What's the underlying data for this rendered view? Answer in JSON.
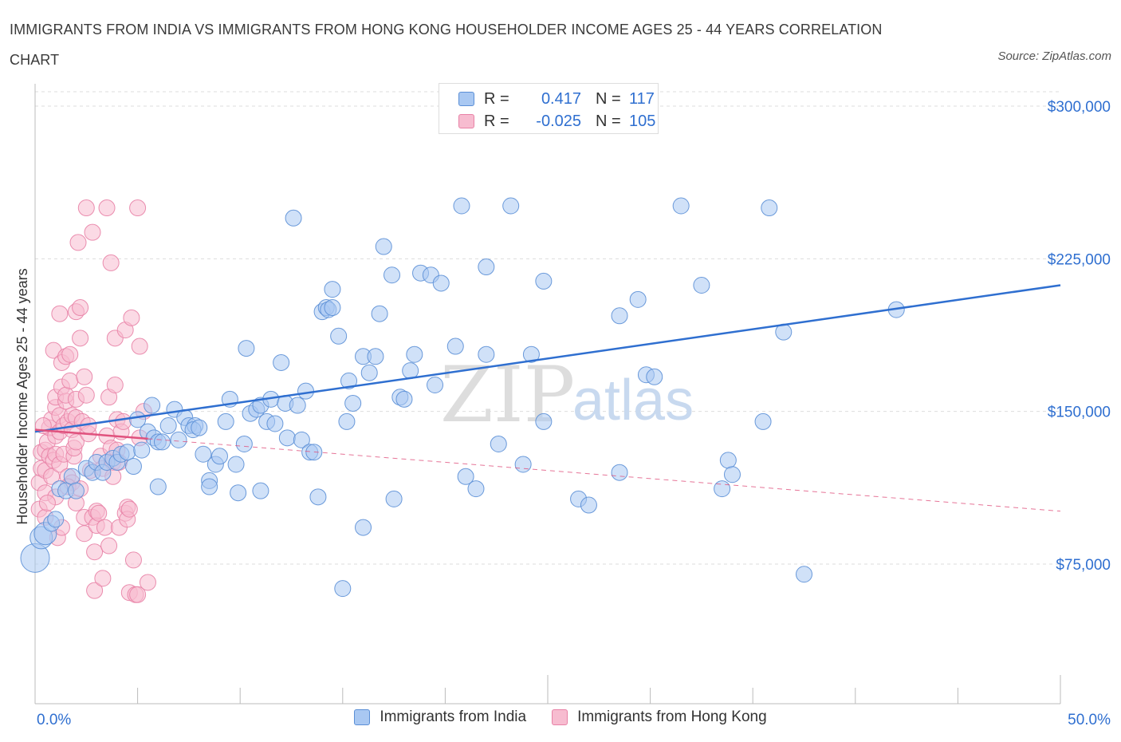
{
  "title": "IMMIGRANTS FROM INDIA VS IMMIGRANTS FROM HONG KONG HOUSEHOLDER INCOME AGES 25 - 44 YEARS CORRELATION CHART",
  "source": "Source: ZipAtlas.com",
  "watermark": {
    "zip": "ZIP",
    "atlas": "atlas"
  },
  "legend": {
    "india": {
      "r_label": "R =",
      "r_value": "0.417",
      "n_label": "N =",
      "n_value": "117"
    },
    "hongkong": {
      "r_label": "R =",
      "r_value": "-0.025",
      "n_label": "N =",
      "n_value": "105"
    }
  },
  "bottom_legend": {
    "india": "Immigrants from India",
    "hongkong": "Immigrants from Hong Kong"
  },
  "colors": {
    "india_fill": "#a9c8f2",
    "india_stroke": "#5b8fd6",
    "india_line": "#2f6fd0",
    "hk_fill": "#f7bcd0",
    "hk_stroke": "#e882a6",
    "hk_line": "#e0527e",
    "tick_text": "#2f6fd0",
    "grid": "#dddddd"
  },
  "chart_data": {
    "type": "scatter",
    "title": "IMMIGRANTS FROM INDIA VS IMMIGRANTS FROM HONG KONG HOUSEHOLDER INCOME AGES 25 - 44 YEARS CORRELATION CHART",
    "xlabel": "",
    "ylabel": "Householder Income Ages 25 - 44 years",
    "xlim": [
      0,
      50
    ],
    "ylim": [
      0,
      300000
    ],
    "x_tick_labels": [
      "0.0%",
      "50.0%"
    ],
    "y_ticks": [
      75000,
      150000,
      225000,
      300000
    ],
    "y_tick_labels": [
      "$75,000",
      "$150,000",
      "$225,000",
      "$300,000"
    ],
    "grid": true,
    "legend_position": "top-center",
    "series": [
      {
        "name": "Immigrants from India",
        "trend": {
          "x": [
            0,
            50
          ],
          "y": [
            140000,
            212000
          ]
        },
        "points": [
          [
            0.0,
            78000
          ],
          [
            0.3,
            88000
          ],
          [
            0.5,
            90000
          ],
          [
            0.8,
            95000
          ],
          [
            1.0,
            97000
          ],
          [
            1.2,
            112000
          ],
          [
            1.5,
            111000
          ],
          [
            1.8,
            118000
          ],
          [
            2.0,
            111000
          ],
          [
            2.5,
            122000
          ],
          [
            2.8,
            120000
          ],
          [
            3.0,
            125000
          ],
          [
            3.3,
            120000
          ],
          [
            3.5,
            125000
          ],
          [
            3.8,
            127000
          ],
          [
            4.0,
            125000
          ],
          [
            4.2,
            129000
          ],
          [
            4.5,
            130000
          ],
          [
            4.8,
            123000
          ],
          [
            5.0,
            146000
          ],
          [
            5.2,
            131000
          ],
          [
            5.5,
            140000
          ],
          [
            5.7,
            153000
          ],
          [
            5.8,
            137000
          ],
          [
            6.0,
            135000
          ],
          [
            6.0,
            113000
          ],
          [
            6.2,
            135000
          ],
          [
            6.5,
            143000
          ],
          [
            6.8,
            151000
          ],
          [
            7.0,
            136000
          ],
          [
            7.3,
            147000
          ],
          [
            7.5,
            143000
          ],
          [
            7.8,
            143000
          ],
          [
            7.7,
            141000
          ],
          [
            8.0,
            142000
          ],
          [
            8.2,
            129000
          ],
          [
            8.5,
            116000
          ],
          [
            8.5,
            113000
          ],
          [
            8.8,
            124000
          ],
          [
            9.0,
            128000
          ],
          [
            9.3,
            145000
          ],
          [
            9.5,
            156000
          ],
          [
            9.8,
            124000
          ],
          [
            9.9,
            110000
          ],
          [
            10.2,
            134000
          ],
          [
            10.3,
            181000
          ],
          [
            10.5,
            149000
          ],
          [
            10.8,
            151000
          ],
          [
            11.0,
            153000
          ],
          [
            11.0,
            111000
          ],
          [
            11.3,
            145000
          ],
          [
            11.5,
            156000
          ],
          [
            11.7,
            144000
          ],
          [
            12.0,
            174000
          ],
          [
            12.2,
            154000
          ],
          [
            12.3,
            137000
          ],
          [
            12.6,
            245000
          ],
          [
            12.8,
            153000
          ],
          [
            13.0,
            136000
          ],
          [
            13.2,
            160000
          ],
          [
            13.4,
            130000
          ],
          [
            13.6,
            130000
          ],
          [
            13.8,
            108000
          ],
          [
            14.0,
            199000
          ],
          [
            14.2,
            201000
          ],
          [
            14.3,
            200000
          ],
          [
            14.5,
            201000
          ],
          [
            14.5,
            210000
          ],
          [
            14.8,
            187000
          ],
          [
            15.0,
            63000
          ],
          [
            15.2,
            145000
          ],
          [
            15.3,
            165000
          ],
          [
            15.5,
            154000
          ],
          [
            16.0,
            177000
          ],
          [
            16.0,
            93000
          ],
          [
            16.3,
            169000
          ],
          [
            16.6,
            177000
          ],
          [
            16.8,
            198000
          ],
          [
            17.0,
            231000
          ],
          [
            17.4,
            217000
          ],
          [
            17.5,
            107000
          ],
          [
            17.8,
            157000
          ],
          [
            18.0,
            156000
          ],
          [
            18.3,
            170000
          ],
          [
            18.5,
            178000
          ],
          [
            18.8,
            218000
          ],
          [
            19.3,
            217000
          ],
          [
            19.5,
            163000
          ],
          [
            19.8,
            213000
          ],
          [
            20.5,
            182000
          ],
          [
            20.8,
            251000
          ],
          [
            21.0,
            118000
          ],
          [
            21.5,
            112000
          ],
          [
            22.0,
            221000
          ],
          [
            22.0,
            178000
          ],
          [
            22.6,
            134000
          ],
          [
            23.2,
            251000
          ],
          [
            23.8,
            124000
          ],
          [
            24.2,
            178000
          ],
          [
            24.8,
            214000
          ],
          [
            24.8,
            145000
          ],
          [
            26.5,
            107000
          ],
          [
            27.0,
            104000
          ],
          [
            28.5,
            197000
          ],
          [
            28.5,
            120000
          ],
          [
            29.4,
            205000
          ],
          [
            29.8,
            168000
          ],
          [
            30.2,
            167000
          ],
          [
            31.5,
            251000
          ],
          [
            32.5,
            212000
          ],
          [
            33.5,
            112000
          ],
          [
            33.8,
            126000
          ],
          [
            34.0,
            119000
          ],
          [
            35.5,
            145000
          ],
          [
            35.8,
            250000
          ],
          [
            36.5,
            189000
          ],
          [
            37.5,
            70000
          ],
          [
            42.0,
            200000
          ]
        ]
      },
      {
        "name": "Immigrants from Hong Kong",
        "trend": {
          "x": [
            0,
            50
          ],
          "y": [
            141000,
            101000
          ]
        },
        "points": [
          [
            0.2,
            102000
          ],
          [
            0.2,
            115000
          ],
          [
            0.3,
            122000
          ],
          [
            0.3,
            130000
          ],
          [
            0.5,
            110000
          ],
          [
            0.5,
            98000
          ],
          [
            0.5,
            121000
          ],
          [
            0.5,
            131000
          ],
          [
            0.6,
            135000
          ],
          [
            0.7,
            128000
          ],
          [
            0.7,
            142000
          ],
          [
            0.8,
            146000
          ],
          [
            0.8,
            118000
          ],
          [
            0.9,
            126000
          ],
          [
            0.9,
            180000
          ],
          [
            1.0,
            129000
          ],
          [
            1.0,
            108000
          ],
          [
            1.0,
            138000
          ],
          [
            1.0,
            152000
          ],
          [
            1.0,
            157000
          ],
          [
            1.2,
            124000
          ],
          [
            1.2,
            140000
          ],
          [
            1.2,
            148000
          ],
          [
            1.2,
            198000
          ],
          [
            1.3,
            174000
          ],
          [
            1.3,
            162000
          ],
          [
            1.4,
            129000
          ],
          [
            1.4,
            143000
          ],
          [
            1.5,
            155000
          ],
          [
            1.5,
            158000
          ],
          [
            1.5,
            177000
          ],
          [
            1.6,
            118000
          ],
          [
            1.6,
            145000
          ],
          [
            1.7,
            178000
          ],
          [
            1.7,
            165000
          ],
          [
            1.8,
            115000
          ],
          [
            1.8,
            148000
          ],
          [
            1.8,
            141000
          ],
          [
            1.9,
            128000
          ],
          [
            1.9,
            132000
          ],
          [
            2.0,
            156000
          ],
          [
            2.0,
            135000
          ],
          [
            2.0,
            105000
          ],
          [
            2.0,
            147000
          ],
          [
            2.0,
            199000
          ],
          [
            2.1,
            233000
          ],
          [
            2.2,
            201000
          ],
          [
            2.2,
            186000
          ],
          [
            2.3,
            145000
          ],
          [
            2.4,
            90000
          ],
          [
            2.4,
            98000
          ],
          [
            2.4,
            167000
          ],
          [
            2.5,
            250000
          ],
          [
            2.5,
            158000
          ],
          [
            2.6,
            139000
          ],
          [
            2.7,
            121000
          ],
          [
            2.8,
            238000
          ],
          [
            2.8,
            98000
          ],
          [
            2.9,
            81000
          ],
          [
            2.9,
            62000
          ],
          [
            3.0,
            94000
          ],
          [
            3.0,
            101000
          ],
          [
            3.1,
            100000
          ],
          [
            3.2,
            128000
          ],
          [
            3.3,
            68000
          ],
          [
            3.3,
            122000
          ],
          [
            3.4,
            93000
          ],
          [
            3.5,
            138000
          ],
          [
            3.5,
            250000
          ],
          [
            3.6,
            157000
          ],
          [
            3.7,
            132000
          ],
          [
            3.7,
            223000
          ],
          [
            3.8,
            125000
          ],
          [
            3.8,
            118000
          ],
          [
            3.9,
            186000
          ],
          [
            3.9,
            163000
          ],
          [
            4.0,
            146000
          ],
          [
            4.0,
            131000
          ],
          [
            4.1,
            93000
          ],
          [
            4.1,
            125000
          ],
          [
            4.2,
            140000
          ],
          [
            4.3,
            145000
          ],
          [
            4.4,
            190000
          ],
          [
            4.4,
            100000
          ],
          [
            4.5,
            103000
          ],
          [
            4.5,
            97000
          ],
          [
            4.6,
            102000
          ],
          [
            4.6,
            61000
          ],
          [
            4.7,
            196000
          ],
          [
            4.8,
            77000
          ],
          [
            4.9,
            60000
          ],
          [
            5.0,
            250000
          ],
          [
            5.0,
            60000
          ],
          [
            5.1,
            182000
          ],
          [
            5.1,
            137000
          ],
          [
            5.3,
            150000
          ],
          [
            5.5,
            66000
          ],
          [
            0.4,
            143000
          ],
          [
            0.6,
            105000
          ],
          [
            1.1,
            88000
          ],
          [
            1.3,
            93000
          ],
          [
            1.6,
            113000
          ],
          [
            2.2,
            112000
          ],
          [
            2.6,
            143000
          ],
          [
            3.6,
            84000
          ]
        ]
      }
    ]
  }
}
